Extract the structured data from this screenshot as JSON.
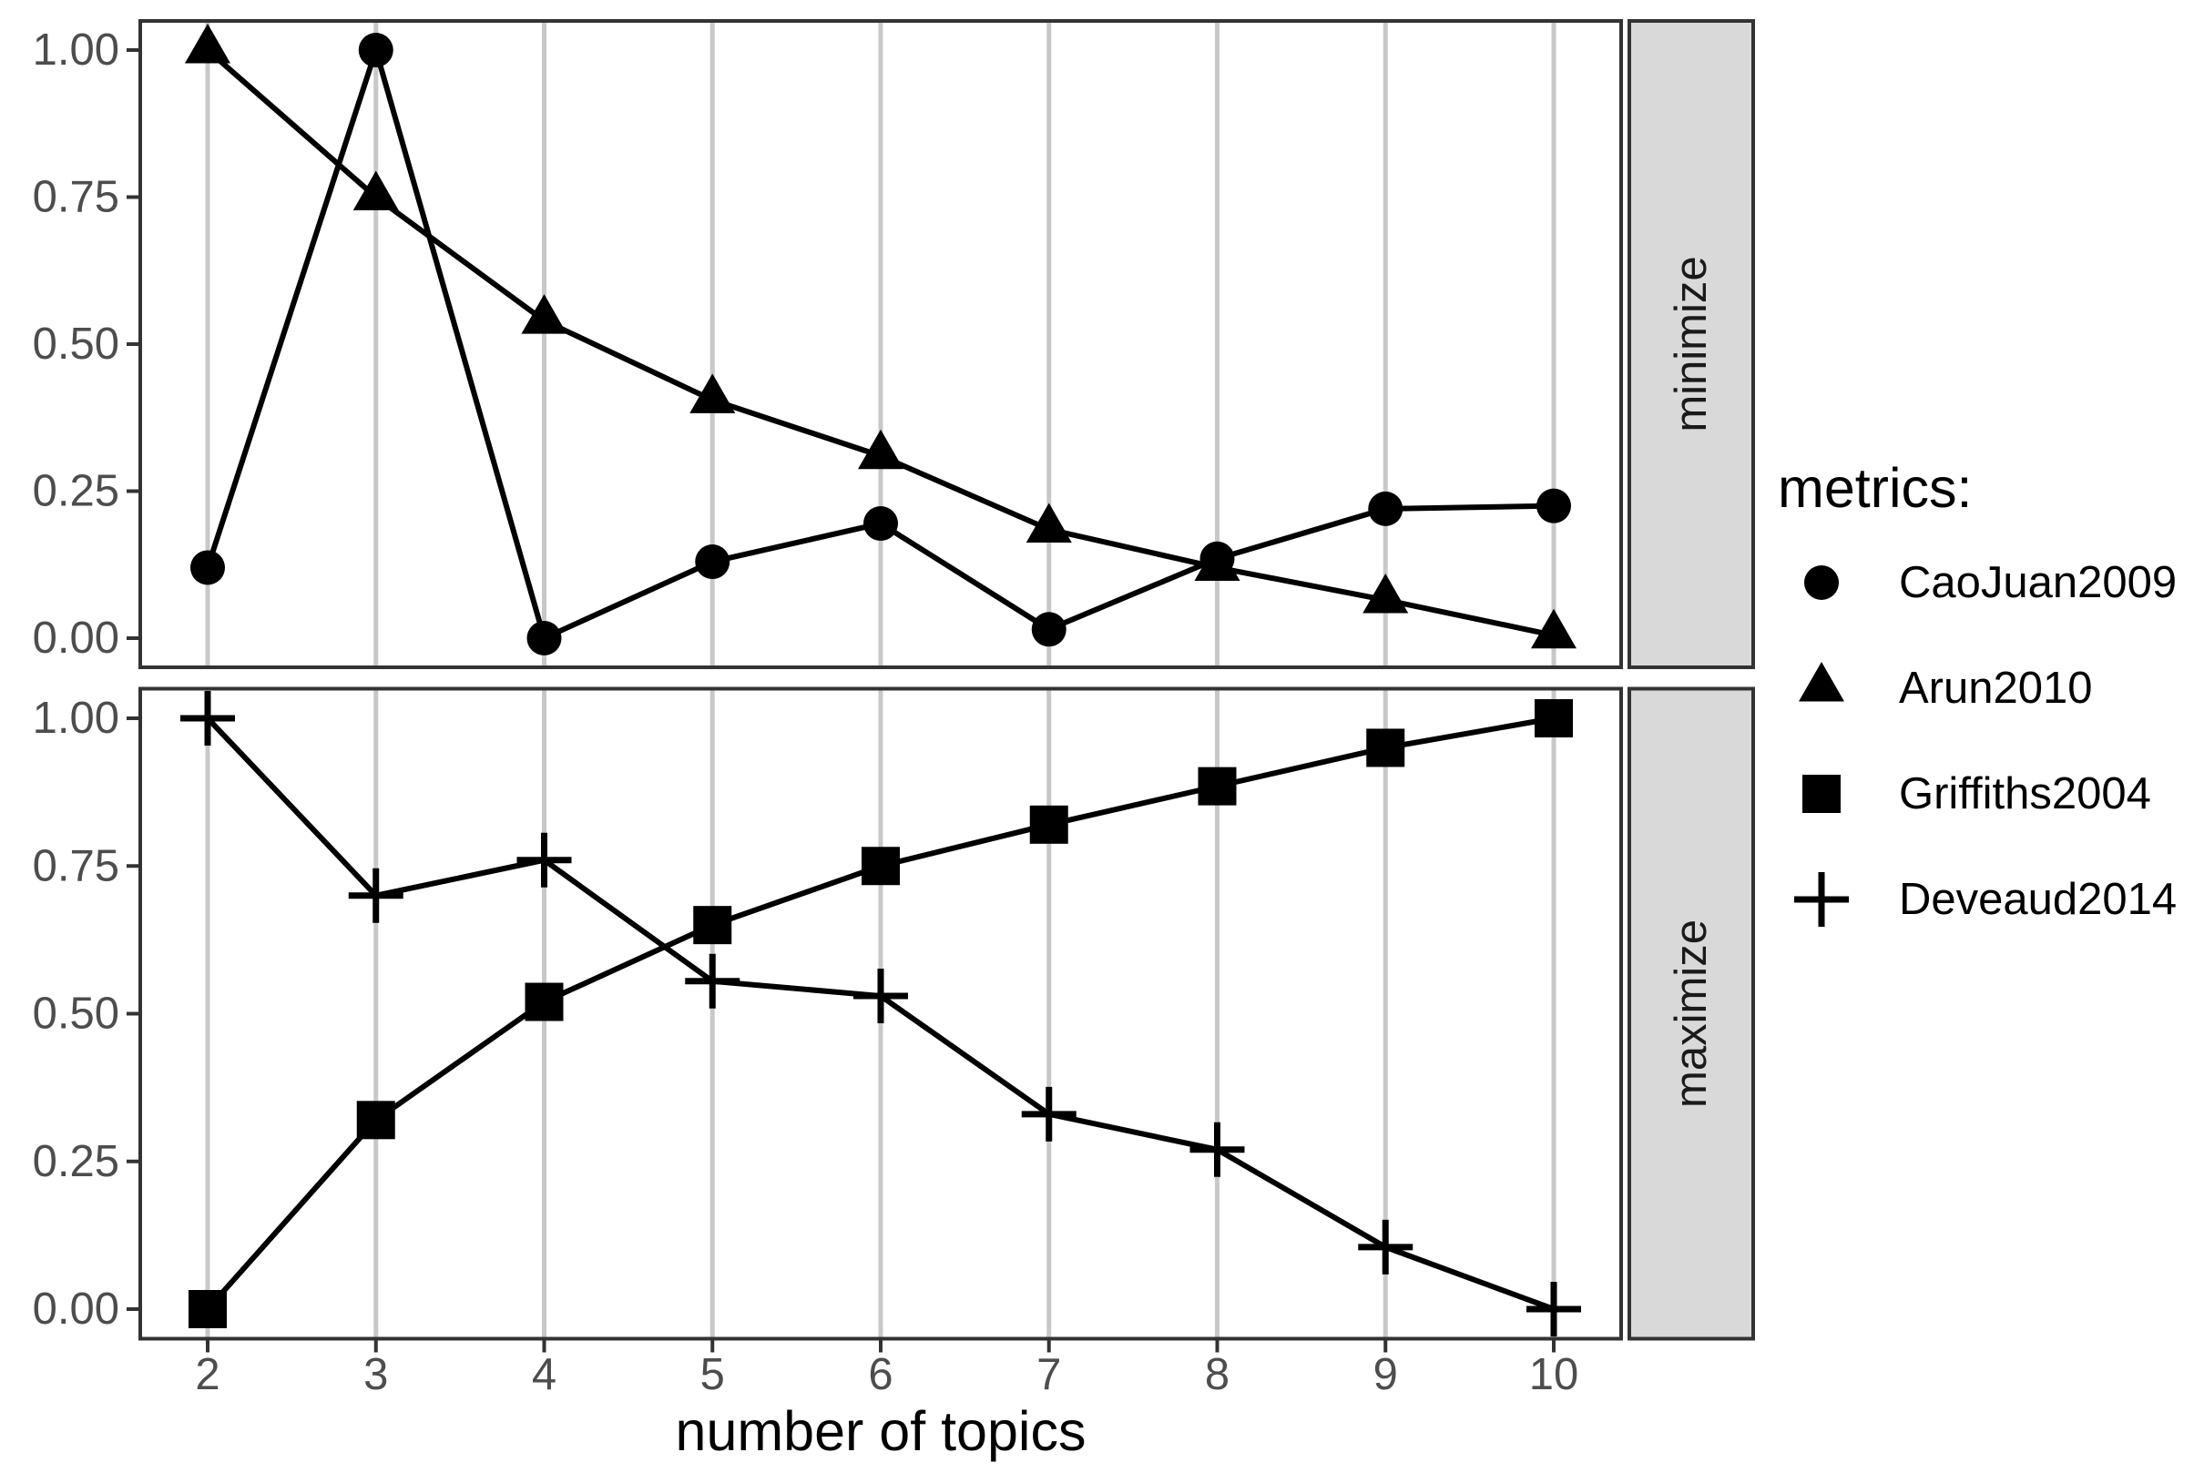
{
  "chart_data": {
    "type": "line",
    "title": "",
    "xlabel": "number of topics",
    "ylabel": "",
    "x": [
      2,
      3,
      4,
      5,
      6,
      7,
      8,
      9,
      10
    ],
    "x_tick_labels": [
      "2",
      "3",
      "4",
      "5",
      "6",
      "7",
      "8",
      "9",
      "10"
    ],
    "y_tick_values": [
      1.0,
      0.75,
      0.5,
      0.25,
      0.0
    ],
    "y_tick_labels": [
      "1.00",
      "0.75",
      "0.50",
      "0.25",
      "0.00"
    ],
    "ylim": [
      0,
      1
    ],
    "grid": "vertical-major-only",
    "legend_position": "right",
    "panels": [
      {
        "facet_label": "minimize",
        "series": [
          {
            "name": "CaoJuan2009",
            "marker": "circle",
            "values": [
              0.12,
              1.0,
              0.0,
              0.13,
              0.195,
              0.015,
              0.135,
              0.22,
              0.225
            ]
          },
          {
            "name": "Arun2010",
            "marker": "triangle",
            "values": [
              1.0,
              0.75,
              0.54,
              0.405,
              0.31,
              0.185,
              0.12,
              0.065,
              0.005
            ]
          }
        ]
      },
      {
        "facet_label": "maximize",
        "series": [
          {
            "name": "Griffiths2004",
            "marker": "square",
            "values": [
              0.0,
              0.32,
              0.52,
              0.65,
              0.75,
              0.82,
              0.885,
              0.95,
              1.0
            ]
          },
          {
            "name": "Deveaud2014",
            "marker": "plus",
            "values": [
              1.0,
              0.7,
              0.76,
              0.555,
              0.53,
              0.33,
              0.27,
              0.105,
              0.0
            ]
          }
        ]
      }
    ]
  },
  "legend": {
    "title": "metrics:",
    "items": [
      {
        "label": "CaoJuan2009",
        "marker": "circle"
      },
      {
        "label": "Arun2010",
        "marker": "triangle"
      },
      {
        "label": "Griffiths2004",
        "marker": "square"
      },
      {
        "label": "Deveaud2014",
        "marker": "plus"
      }
    ]
  },
  "colors": {
    "foreground": "#000000",
    "axis_text": "#4d4d4d",
    "axis_title": "#000000",
    "gridline": "#c8c8c8",
    "panel_border": "#333333",
    "strip_fill": "#d9d9d9",
    "strip_text": "#1a1a1a",
    "background": "#ffffff"
  }
}
